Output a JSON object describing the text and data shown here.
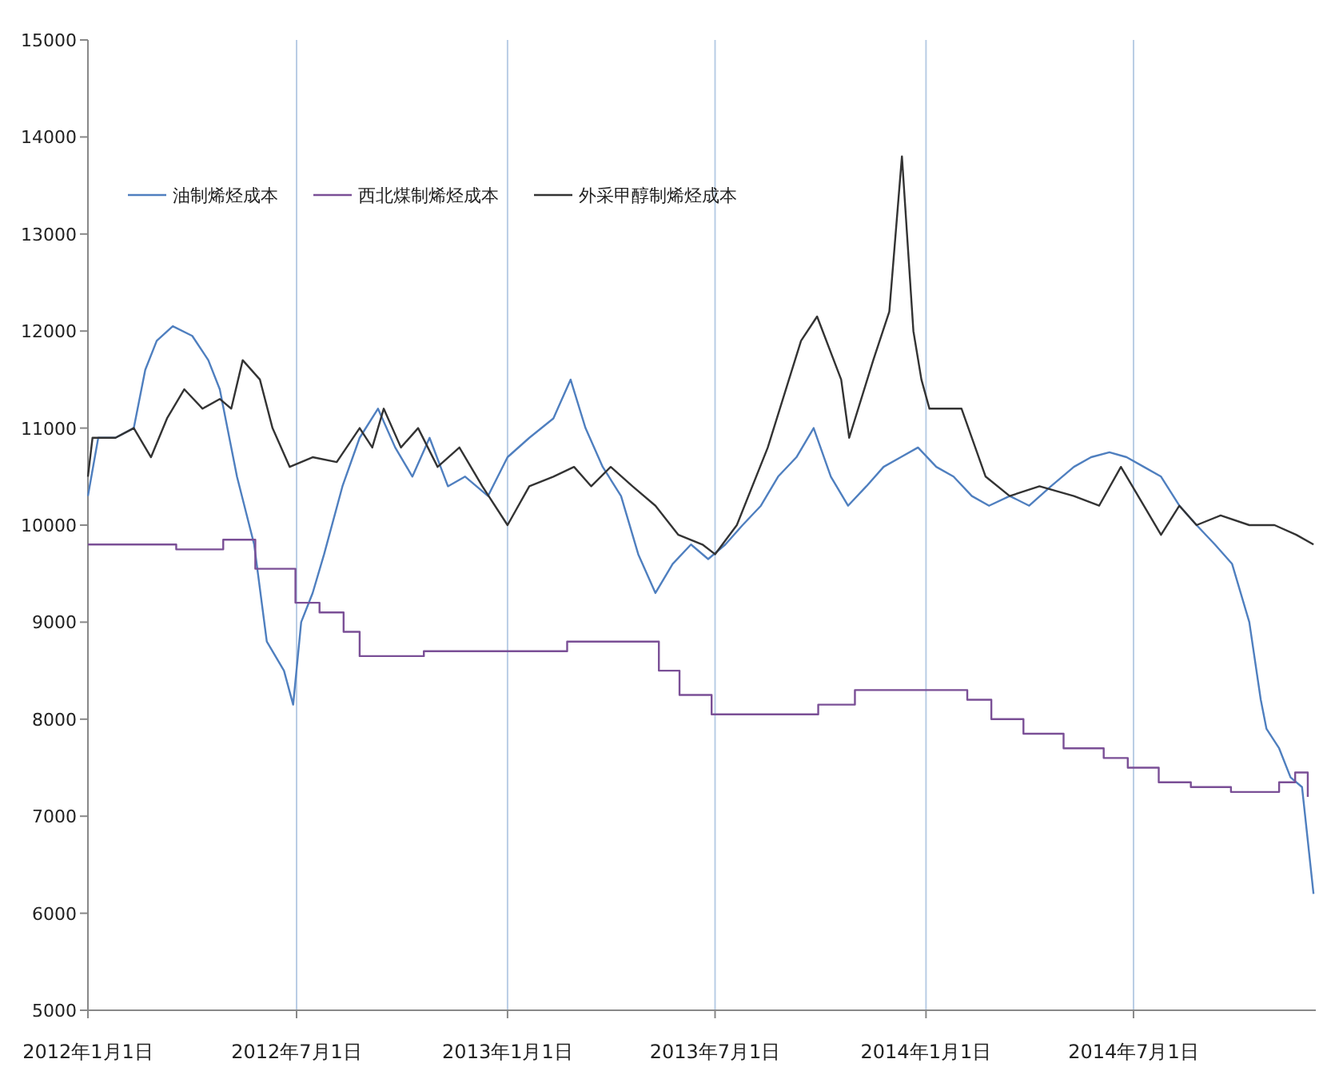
{
  "chart_data": {
    "type": "line",
    "legend": "top left",
    "grid": "x",
    "marker": "none",
    "line_style": "solid",
    "xlim": [
      "2012-01-01",
      "2014-12-07"
    ],
    "xticks": [
      {
        "value": "2012-01-01",
        "label": "2012年1月1日"
      },
      {
        "value": "2012-07-01",
        "label": "2012年7月1日"
      },
      {
        "value": "2013-01-01",
        "label": "2013年1月1日"
      },
      {
        "value": "2013-07-01",
        "label": "2013年7月1日"
      },
      {
        "value": "2014-01-01",
        "label": "2014年1月1日"
      },
      {
        "value": "2014-07-01",
        "label": "2014年7月1日"
      }
    ],
    "ylim": [
      5000,
      15000
    ],
    "yticks": [
      5000,
      6000,
      7000,
      8000,
      9000,
      10000,
      11000,
      12000,
      13000,
      14000,
      15000
    ],
    "series": [
      {
        "name": "油制烯烃成本",
        "color": "#4f7fbf",
        "x": [
          "2012-01-01",
          "2012-01-10",
          "2012-01-25",
          "2012-02-10",
          "2012-02-20",
          "2012-03-01",
          "2012-03-15",
          "2012-04-01",
          "2012-04-15",
          "2012-04-25",
          "2012-05-10",
          "2012-05-25",
          "2012-06-05",
          "2012-06-20",
          "2012-06-28",
          "2012-07-05",
          "2012-07-15",
          "2012-07-25",
          "2012-08-10",
          "2012-08-25",
          "2012-09-10",
          "2012-09-25",
          "2012-10-10",
          "2012-10-25",
          "2012-11-10",
          "2012-11-25",
          "2012-12-15",
          "2013-01-01",
          "2013-01-20",
          "2013-02-10",
          "2013-02-25",
          "2013-03-10",
          "2013-03-25",
          "2013-04-10",
          "2013-04-25",
          "2013-05-10",
          "2013-05-25",
          "2013-06-10",
          "2013-06-25",
          "2013-07-10",
          "2013-07-25",
          "2013-08-10",
          "2013-08-25",
          "2013-09-10",
          "2013-09-25",
          "2013-10-10",
          "2013-10-25",
          "2013-11-10",
          "2013-11-25",
          "2013-12-10",
          "2013-12-25",
          "2014-01-10",
          "2014-01-25",
          "2014-02-10",
          "2014-02-25",
          "2014-03-15",
          "2014-04-01",
          "2014-04-20",
          "2014-05-10",
          "2014-05-25",
          "2014-06-10",
          "2014-06-25",
          "2014-07-10",
          "2014-07-25",
          "2014-08-10",
          "2014-08-25",
          "2014-09-10",
          "2014-09-25",
          "2014-10-10",
          "2014-10-20",
          "2014-10-25",
          "2014-11-05",
          "2014-11-15",
          "2014-11-25",
          "2014-12-05"
        ],
        "values": [
          10300,
          10900,
          10900,
          11000,
          11600,
          11900,
          12050,
          11950,
          11700,
          11400,
          10500,
          9800,
          8800,
          8500,
          8150,
          9000,
          9300,
          9700,
          10400,
          10900,
          11200,
          10800,
          10500,
          10900,
          10400,
          10500,
          10300,
          10700,
          10900,
          11100,
          11500,
          11000,
          10600,
          10300,
          9700,
          9300,
          9600,
          9800,
          9650,
          9800,
          10000,
          10200,
          10500,
          10700,
          11000,
          10500,
          10200,
          10400,
          10600,
          10700,
          10800,
          10600,
          10500,
          10300,
          10200,
          10300,
          10200,
          10400,
          10600,
          10700,
          10750,
          10700,
          10600,
          10500,
          10200,
          10000,
          9800,
          9600,
          9000,
          8200,
          7900,
          7700,
          7400,
          7300,
          6200
        ]
      },
      {
        "name": "西北煤制烯烃成本",
        "color": "#7a4f96",
        "type": "step",
        "x": [
          "2012-01-01",
          "2012-03-18",
          "2012-04-28",
          "2012-05-26",
          "2012-06-30",
          "2012-07-21",
          "2012-08-11",
          "2012-08-25",
          "2012-10-20",
          "2013-02-22",
          "2013-05-13",
          "2013-05-31",
          "2013-06-28",
          "2013-09-29",
          "2013-10-31",
          "2014-02-06",
          "2014-02-27",
          "2014-03-27",
          "2014-05-01",
          "2014-06-05",
          "2014-06-26",
          "2014-07-23",
          "2014-08-20",
          "2014-09-24",
          "2014-11-05",
          "2014-11-19",
          "2014-11-30"
        ],
        "values": [
          9800,
          9750,
          9850,
          9550,
          9200,
          9100,
          8900,
          8650,
          8700,
          8800,
          8500,
          8250,
          8050,
          8150,
          8300,
          8200,
          8000,
          7850,
          7700,
          7600,
          7500,
          7350,
          7300,
          7250,
          7350,
          7450,
          7200
        ]
      },
      {
        "name": "外采甲醇制烯烃成本",
        "color": "#333333",
        "x": [
          "2012-01-01",
          "2012-01-05",
          "2012-01-25",
          "2012-02-10",
          "2012-02-25",
          "2012-03-10",
          "2012-03-25",
          "2012-04-10",
          "2012-04-25",
          "2012-05-05",
          "2012-05-15",
          "2012-05-30",
          "2012-06-10",
          "2012-06-25",
          "2012-07-15",
          "2012-08-05",
          "2012-08-25",
          "2012-09-05",
          "2012-09-15",
          "2012-09-30",
          "2012-10-15",
          "2012-11-01",
          "2012-11-20",
          "2012-12-10",
          "2013-01-01",
          "2013-01-20",
          "2013-02-10",
          "2013-02-28",
          "2013-03-15",
          "2013-04-01",
          "2013-04-20",
          "2013-05-10",
          "2013-05-30",
          "2013-06-20",
          "2013-07-01",
          "2013-07-20",
          "2013-08-16",
          "2013-09-14",
          "2013-09-28",
          "2013-10-19",
          "2013-10-26",
          "2013-11-16",
          "2013-11-30",
          "2013-12-11",
          "2013-12-21",
          "2013-12-28",
          "2014-01-04",
          "2014-02-01",
          "2014-02-22",
          "2014-03-15",
          "2014-04-10",
          "2014-05-10",
          "2014-06-01",
          "2014-06-20",
          "2014-07-10",
          "2014-07-25",
          "2014-08-10",
          "2014-08-25",
          "2014-09-15",
          "2014-10-10",
          "2014-11-01",
          "2014-11-20",
          "2014-12-05"
        ],
        "values": [
          10500,
          10900,
          10900,
          11000,
          10700,
          11100,
          11400,
          11200,
          11300,
          11200,
          11700,
          11500,
          11000,
          10600,
          10700,
          10650,
          11000,
          10800,
          11200,
          10800,
          11000,
          10600,
          10800,
          10400,
          10000,
          10400,
          10500,
          10600,
          10400,
          10600,
          10400,
          10200,
          9900,
          9800,
          9700,
          10000,
          10800,
          11900,
          12150,
          11500,
          10900,
          11700,
          12200,
          13800,
          12000,
          11500,
          11200,
          11200,
          10500,
          10300,
          10400,
          10300,
          10200,
          10600,
          10200,
          9900,
          10200,
          10000,
          10100,
          10000,
          10000,
          9900,
          9800
        ]
      }
    ]
  }
}
